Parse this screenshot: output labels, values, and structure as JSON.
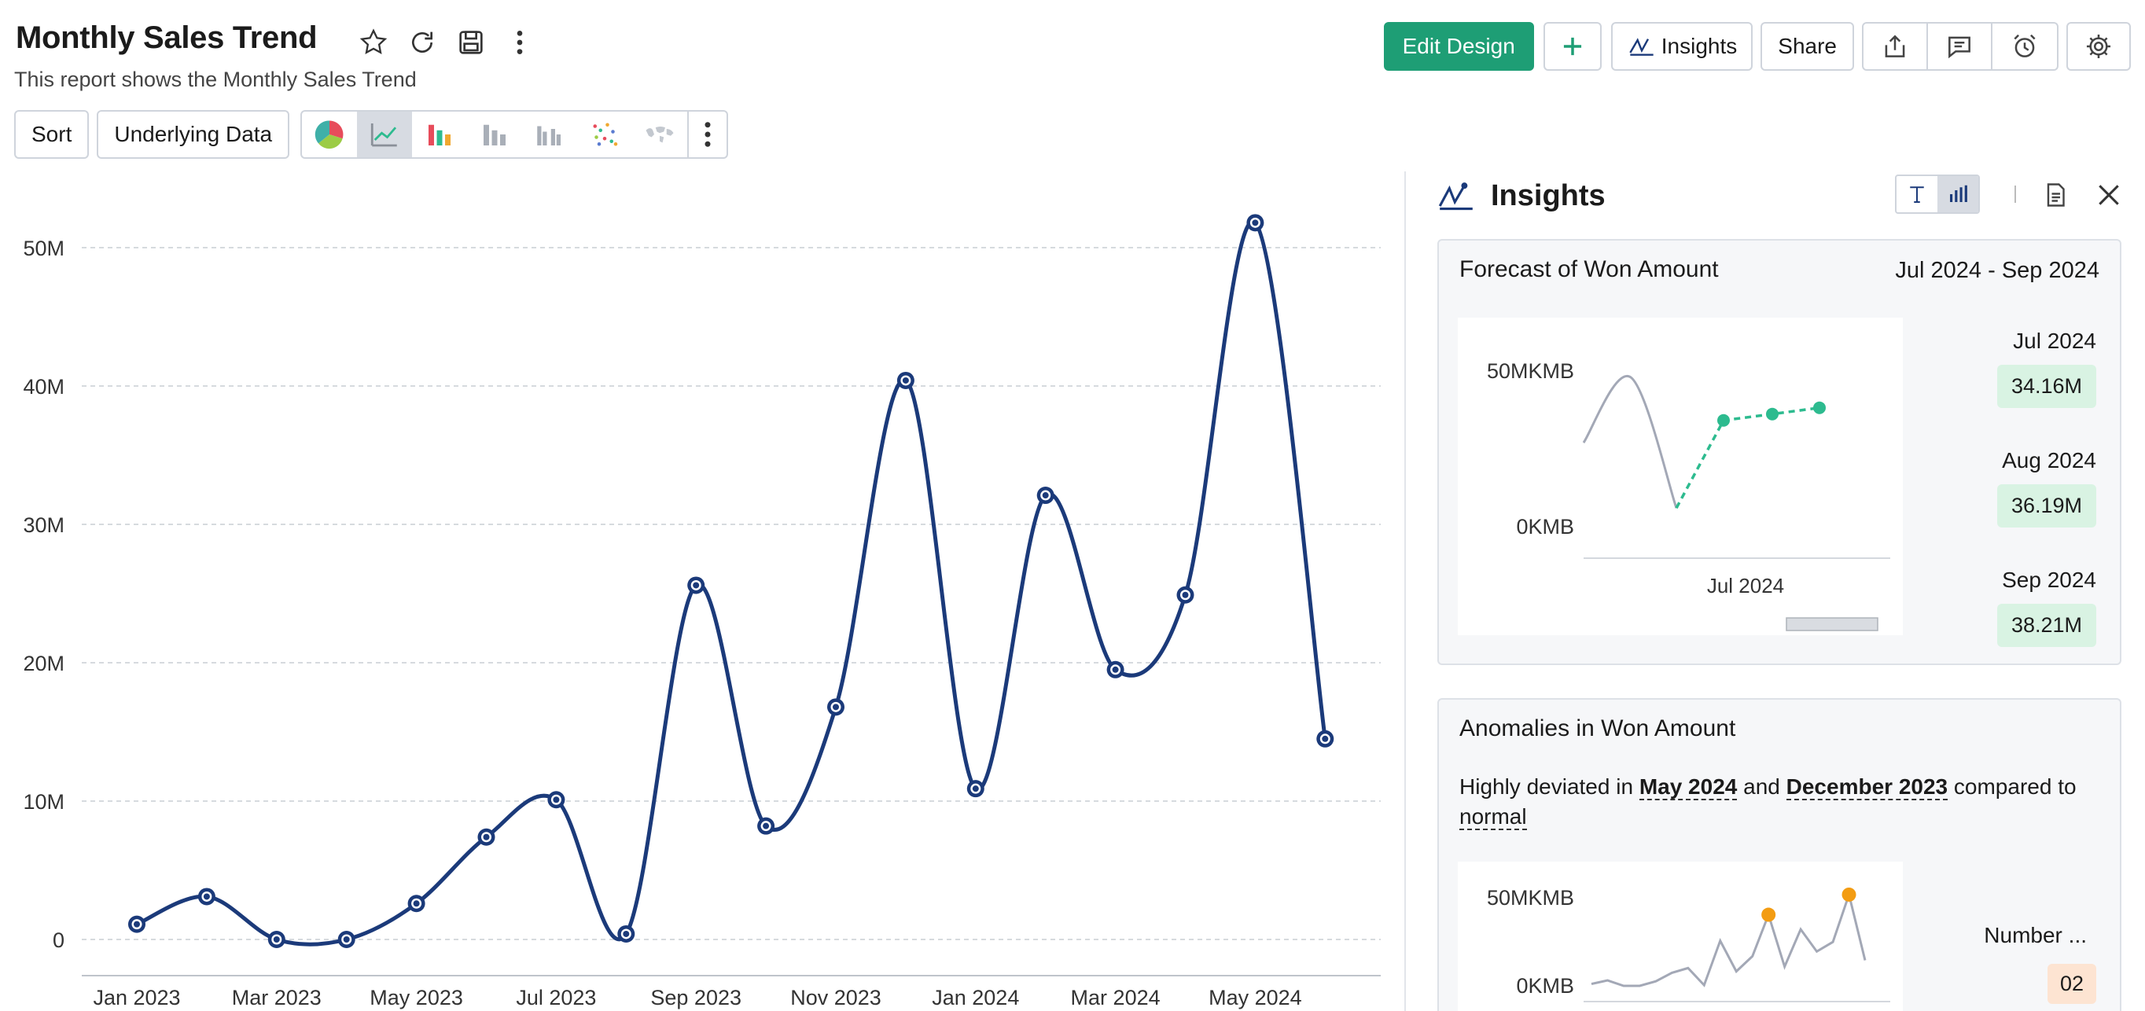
{
  "header": {
    "title": "Monthly Sales Trend",
    "subtitle": "This report shows the Monthly Sales Trend",
    "title_icons": [
      "star-icon",
      "refresh-icon",
      "save-icon",
      "more-vertical-icon"
    ]
  },
  "actions": {
    "edit_design": "Edit Design",
    "add_icon": "plus-icon",
    "insights": "Insights",
    "share": "Share",
    "icon_buttons": [
      "export-icon",
      "comment-icon",
      "alarm-icon",
      "settings-icon"
    ],
    "accent": "#1e9e75"
  },
  "toolbar": {
    "sort": "Sort",
    "underlying_data": "Underlying Data",
    "chart_types": [
      "pie-chart-icon",
      "line-chart-icon",
      "bar-chart-icon",
      "stacked-bar-icon",
      "grouped-bar-icon",
      "scatter-chart-icon",
      "map-chart-icon"
    ],
    "active_chart_type": "line-chart-icon"
  },
  "chart_data": {
    "type": "line",
    "x": [
      "Jan 2023",
      "Feb 2023",
      "Mar 2023",
      "Apr 2023",
      "May 2023",
      "Jun 2023",
      "Jul 2023",
      "Aug 2023",
      "Sep 2023",
      "Oct 2023",
      "Nov 2023",
      "Dec 2023",
      "Jan 2024",
      "Feb 2024",
      "Mar 2024",
      "Apr 2024",
      "May 2024",
      "Jun 2024"
    ],
    "values": [
      1.1,
      3.1,
      0.0,
      0.0,
      2.6,
      7.4,
      10.1,
      0.4,
      25.6,
      8.2,
      16.8,
      40.4,
      10.9,
      32.1,
      19.5,
      24.9,
      51.8,
      14.5
    ],
    "x_tick_labels": [
      "Jan 2023",
      "Mar 2023",
      "May 2023",
      "Jul 2023",
      "Sep 2023",
      "Nov 2023",
      "Jan 2024",
      "Mar 2024",
      "May 2024"
    ],
    "y_ticks": [
      0,
      10,
      20,
      30,
      40,
      50
    ],
    "y_tick_labels": [
      "0",
      "10M",
      "20M",
      "30M",
      "40M",
      "50M"
    ],
    "ylim": [
      0,
      52
    ],
    "grid": true,
    "color": "#1b3a7a"
  },
  "insights": {
    "title": "Insights",
    "forecast": {
      "title": "Forecast of Won Amount",
      "range": "Jul 2024 - Sep 2024",
      "y_labels": [
        "50MKMB",
        "0KMB"
      ],
      "x_label": "Jul 2024",
      "history": [
        27,
        48,
        6
      ],
      "forecast_values": [
        34.16,
        36.19,
        38.21
      ],
      "items": [
        {
          "label": "Jul 2024",
          "value": "34.16M"
        },
        {
          "label": "Aug 2024",
          "value": "36.19M"
        },
        {
          "label": "Sep 2024",
          "value": "38.21M"
        }
      ],
      "forecast_color": "#2dbb8f"
    },
    "anomalies": {
      "title": "Anomalies in Won Amount",
      "text_prefix": "Highly deviated in ",
      "month_1": "May 2024",
      "text_and": " and ",
      "month_2": "December 2023",
      "text_suffix": " compared to ",
      "normal": "normal",
      "y_labels": [
        "50MKMB",
        "0KMB"
      ],
      "spark": [
        1.1,
        3.1,
        0.0,
        0.0,
        2.6,
        7.4,
        10.1,
        0.4,
        25.6,
        8.2,
        16.8,
        40.4,
        10.9,
        32.1,
        19.5,
        24.9,
        51.8,
        14.5
      ],
      "anomaly_indices": [
        11,
        16
      ],
      "number_label": "Number ...",
      "number_value": "02",
      "anomaly_color": "#f39c12"
    }
  }
}
